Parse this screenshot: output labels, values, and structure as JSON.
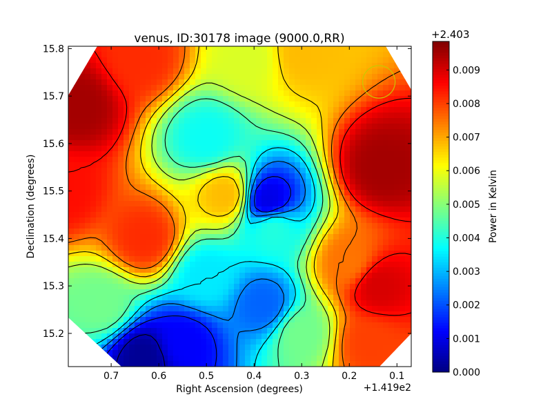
{
  "chart_data": {
    "type": "heatmap",
    "title": "venus, ID:30178 image (9000.0,RR)",
    "xlabel": "Right Ascension (degrees)",
    "ylabel": "Declination (degrees)",
    "x_offset_label": "+1.419e2",
    "x_ticks": [
      "0.7",
      "0.6",
      "0.5",
      "0.4",
      "0.3",
      "0.2",
      "0.1"
    ],
    "x_tick_values": [
      0.7,
      0.6,
      0.5,
      0.4,
      0.3,
      0.2,
      0.1
    ],
    "xlim": [
      0.79,
      0.07
    ],
    "y_ticks": [
      "15.2",
      "15.3",
      "15.4",
      "15.5",
      "15.6",
      "15.7",
      "15.8"
    ],
    "y_tick_values": [
      15.2,
      15.3,
      15.4,
      15.5,
      15.6,
      15.7,
      15.8
    ],
    "ylim": [
      15.13,
      15.805
    ],
    "colorbar": {
      "label": "Power in Kelvin",
      "offset_label": "+2.403",
      "ticks": [
        "0.000",
        "0.001",
        "0.002",
        "0.003",
        "0.004",
        "0.005",
        "0.006",
        "0.007",
        "0.008",
        "0.009"
      ],
      "tick_values": [
        0.0,
        0.001,
        0.002,
        0.003,
        0.004,
        0.005,
        0.006,
        0.007,
        0.008,
        0.009
      ],
      "range": [
        0.0,
        0.00985
      ],
      "colormap": "jet"
    },
    "field_features": [
      {
        "x": 0.77,
        "y": 15.68,
        "value": 0.0095
      },
      {
        "x": 0.8,
        "y": 15.5,
        "value": 0.0085
      },
      {
        "x": 0.64,
        "y": 15.78,
        "value": 0.0082
      },
      {
        "x": 0.63,
        "y": 15.4,
        "value": 0.0082
      },
      {
        "x": 0.3,
        "y": 15.79,
        "value": 0.0068
      },
      {
        "x": 0.41,
        "y": 15.78,
        "value": 0.0058
      },
      {
        "x": 0.13,
        "y": 15.55,
        "value": 0.0095
      },
      {
        "x": 0.14,
        "y": 15.3,
        "value": 0.009
      },
      {
        "x": 0.16,
        "y": 15.18,
        "value": 0.008
      },
      {
        "x": 0.46,
        "y": 15.49,
        "value": 0.0068
      },
      {
        "x": 0.5,
        "y": 15.61,
        "value": 0.0038
      },
      {
        "x": 0.37,
        "y": 15.48,
        "value": 0.001
      },
      {
        "x": 0.36,
        "y": 15.42,
        "value": 0.004
      },
      {
        "x": 0.5,
        "y": 15.32,
        "value": 0.0035
      },
      {
        "x": 0.38,
        "y": 15.26,
        "value": 0.0022
      },
      {
        "x": 0.63,
        "y": 15.15,
        "value": 0.0002
      },
      {
        "x": 0.55,
        "y": 15.18,
        "value": 0.0012
      },
      {
        "x": 0.72,
        "y": 15.26,
        "value": 0.0048
      },
      {
        "x": 0.3,
        "y": 15.2,
        "value": 0.0048
      },
      {
        "x": 0.2,
        "y": 15.35,
        "value": 0.0075
      }
    ],
    "contour_levels": [
      0.0005,
      0.0015,
      0.0025,
      0.0035,
      0.0045,
      0.0055,
      0.0065,
      0.0075,
      0.0085,
      0.0095
    ],
    "beam_marker": {
      "x": 0.138,
      "y": 15.73,
      "radius_deg": 0.055,
      "color": "#c8c800"
    },
    "grid": false,
    "legend": "none"
  }
}
